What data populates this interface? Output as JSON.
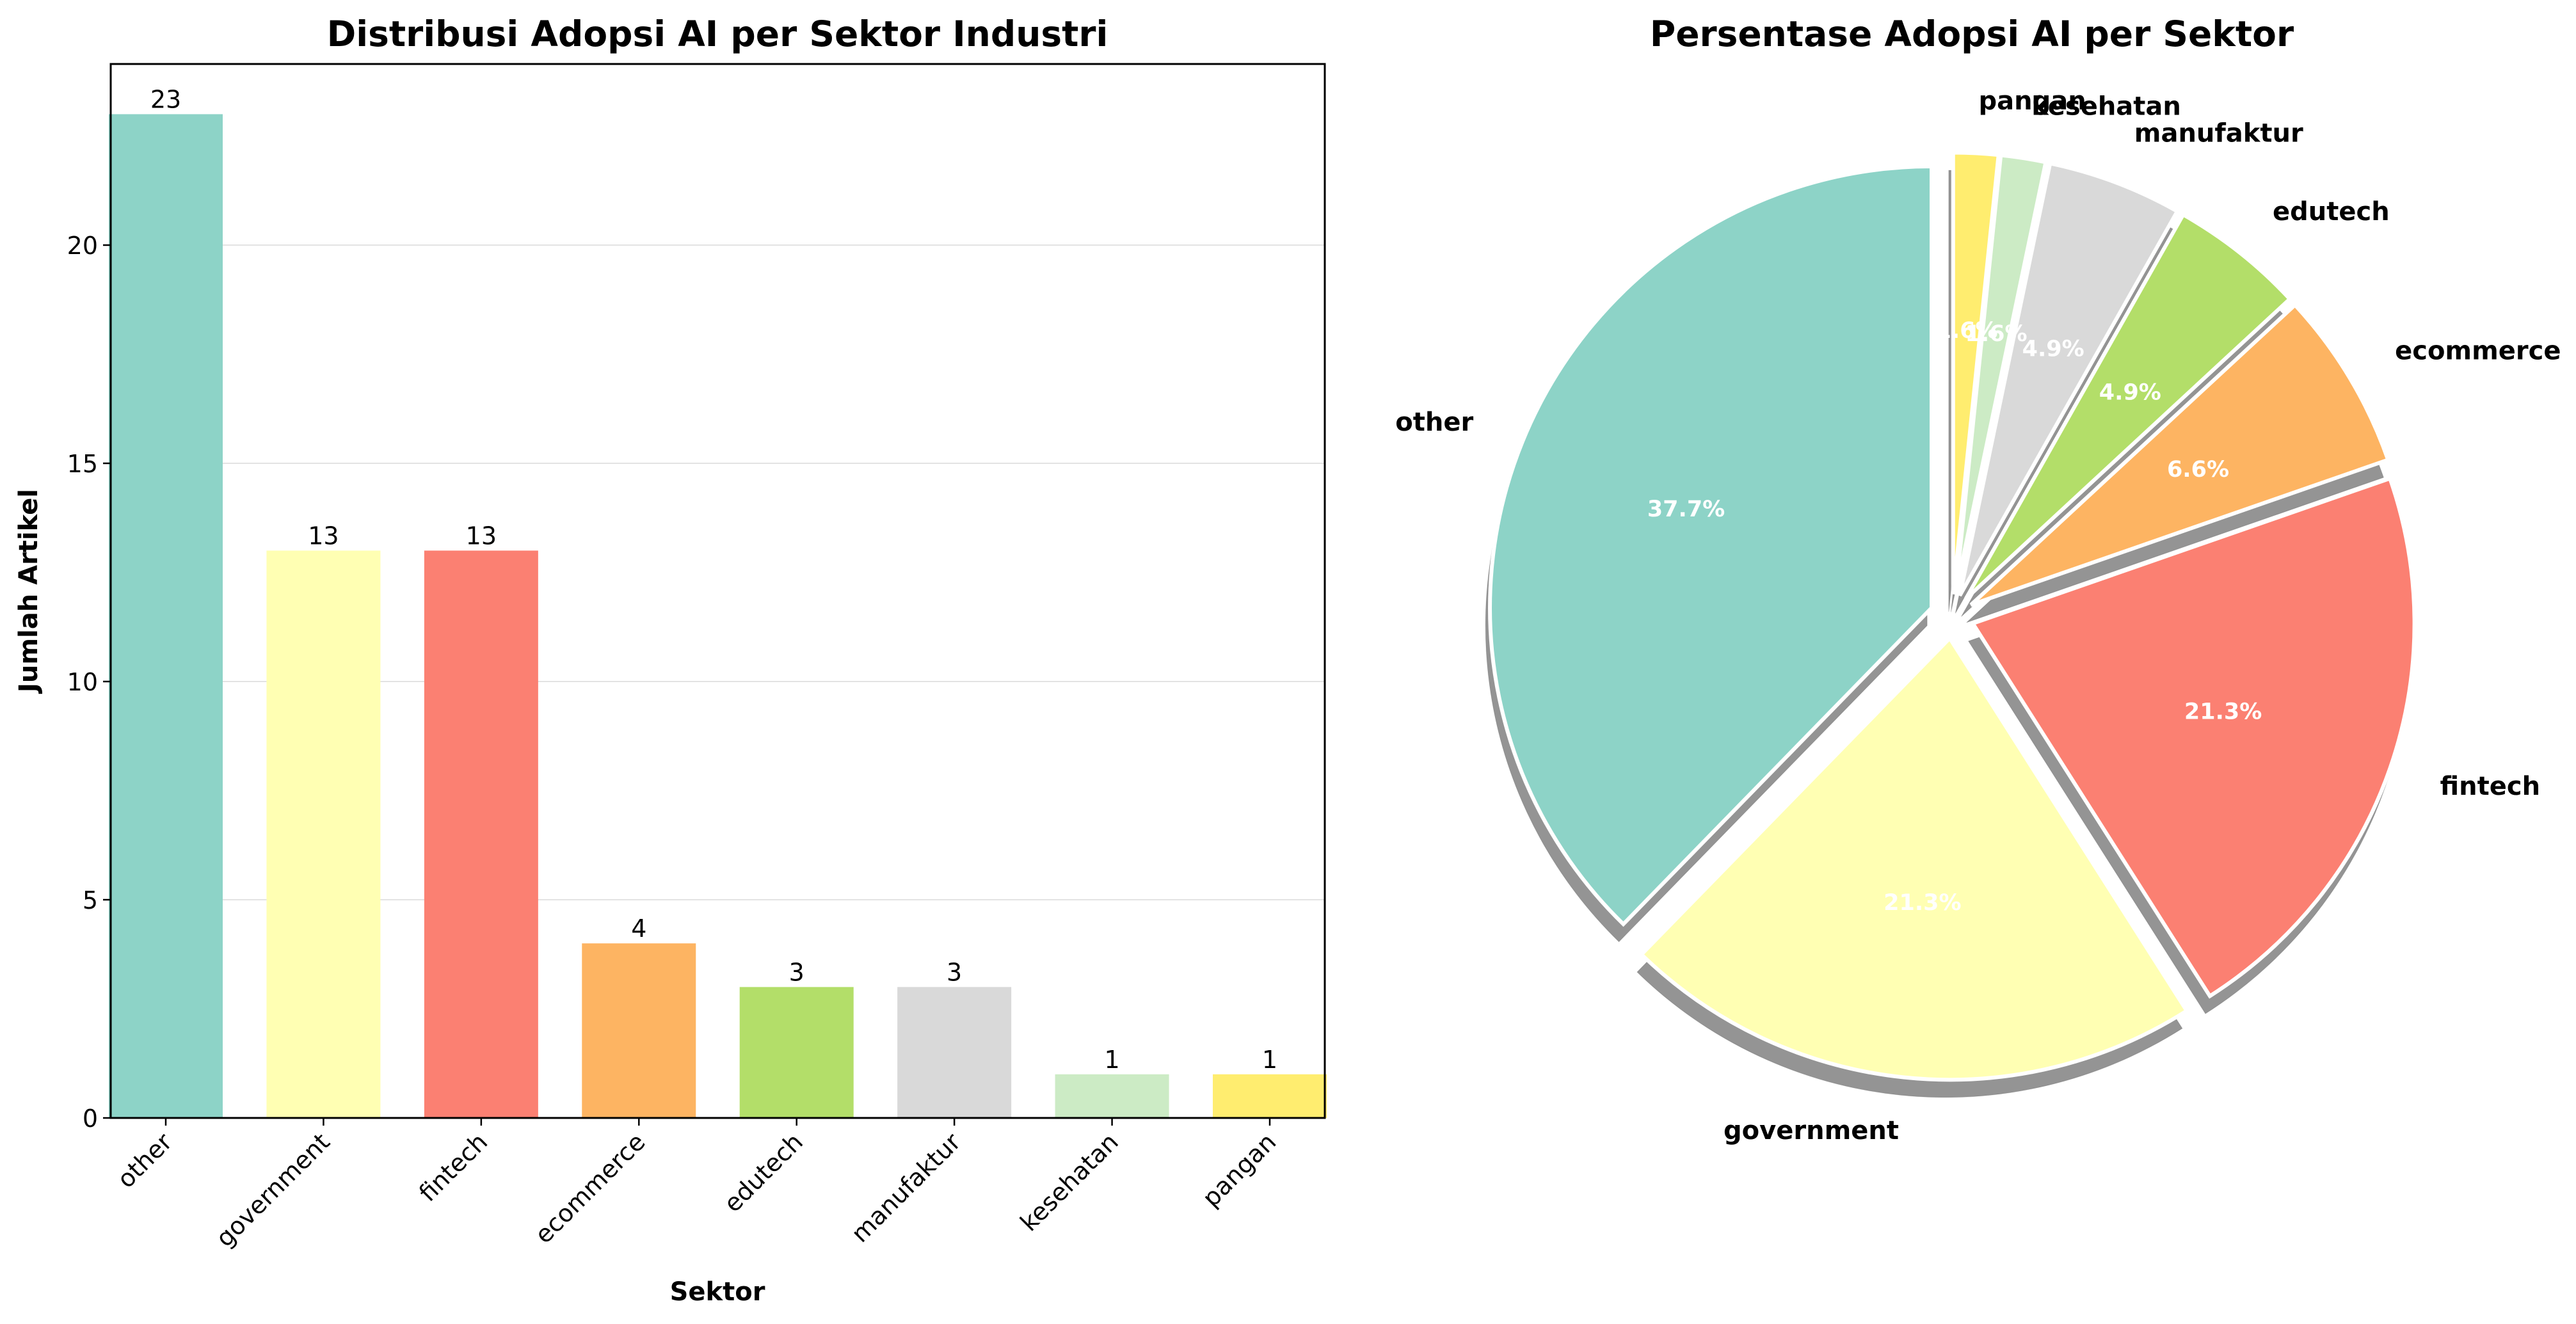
{
  "chart_data": [
    {
      "type": "bar",
      "title": "Distribusi Adopsi AI per Sektor Industri",
      "xlabel": "Sektor",
      "ylabel": "Jumlah Artikel",
      "categories": [
        "other",
        "government",
        "fintech",
        "ecommerce",
        "edutech",
        "manufaktur",
        "kesehatan",
        "pangan"
      ],
      "values": [
        23,
        13,
        13,
        4,
        3,
        3,
        1,
        1
      ],
      "value_labels": [
        "23",
        "13",
        "13",
        "4",
        "3",
        "3",
        "1",
        "1"
      ],
      "colors": [
        "#8dd3c7",
        "#ffffb3",
        "#fb8072",
        "#fdb462",
        "#b3de69",
        "#d9d9d9",
        "#ccebc5",
        "#ffed6f"
      ],
      "ylim": [
        0,
        24.15
      ],
      "yticks": [
        0,
        5,
        10,
        15,
        20
      ],
      "ytick_labels": [
        "0",
        "5",
        "10",
        "15",
        "20"
      ],
      "grid": "y-axis"
    },
    {
      "type": "pie",
      "title": "Persentase Adopsi AI per Sektor",
      "labels": [
        "other",
        "government",
        "fintech",
        "ecommerce",
        "edutech",
        "manufaktur",
        "kesehatan",
        "pangan"
      ],
      "values": [
        23,
        13,
        13,
        4,
        3,
        3,
        1,
        1
      ],
      "percent_labels": [
        "37.7%",
        "21.3%",
        "21.3%",
        "6.6%",
        "4.9%",
        "4.9%",
        "1.6%",
        "1.6%"
      ],
      "colors": [
        "#8dd3c7",
        "#ffffb3",
        "#fb8072",
        "#fdb462",
        "#b3de69",
        "#d9d9d9",
        "#ccebc5",
        "#ffed6f"
      ],
      "start_angle_deg": 90,
      "explode": 0.05,
      "shadow": true
    }
  ]
}
